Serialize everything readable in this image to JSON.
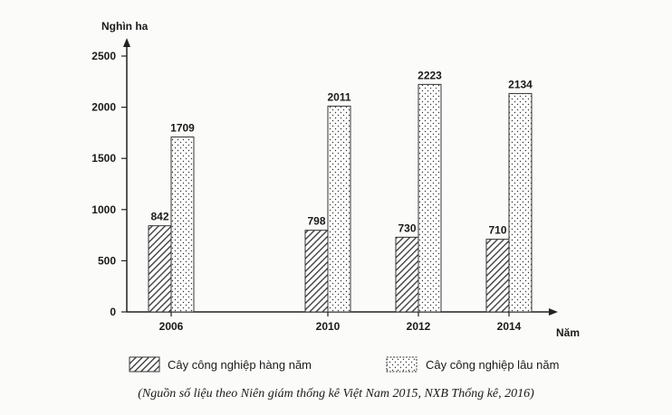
{
  "chart_data": {
    "type": "bar",
    "title": "",
    "ylabel": "Nghìn ha",
    "xlabel": "Năm",
    "ylim": [
      0,
      2500
    ],
    "yticks": [
      0,
      500,
      1000,
      1500,
      2000,
      2500
    ],
    "categories": [
      "2006",
      "2010",
      "2012",
      "2014"
    ],
    "series": [
      {
        "name": "Cây công nghiệp hàng năm",
        "values": [
          842,
          798,
          730,
          710
        ],
        "pattern": "hatch"
      },
      {
        "name": "Cây công nghiệp lâu năm",
        "values": [
          1709,
          2011,
          2223,
          2134
        ],
        "pattern": "dots"
      }
    ],
    "grid": false,
    "legend": "bottom"
  },
  "source": "(Nguồn số liệu theo Niên giám thống kê Việt Nam 2015, NXB Thống kê, 2016)"
}
